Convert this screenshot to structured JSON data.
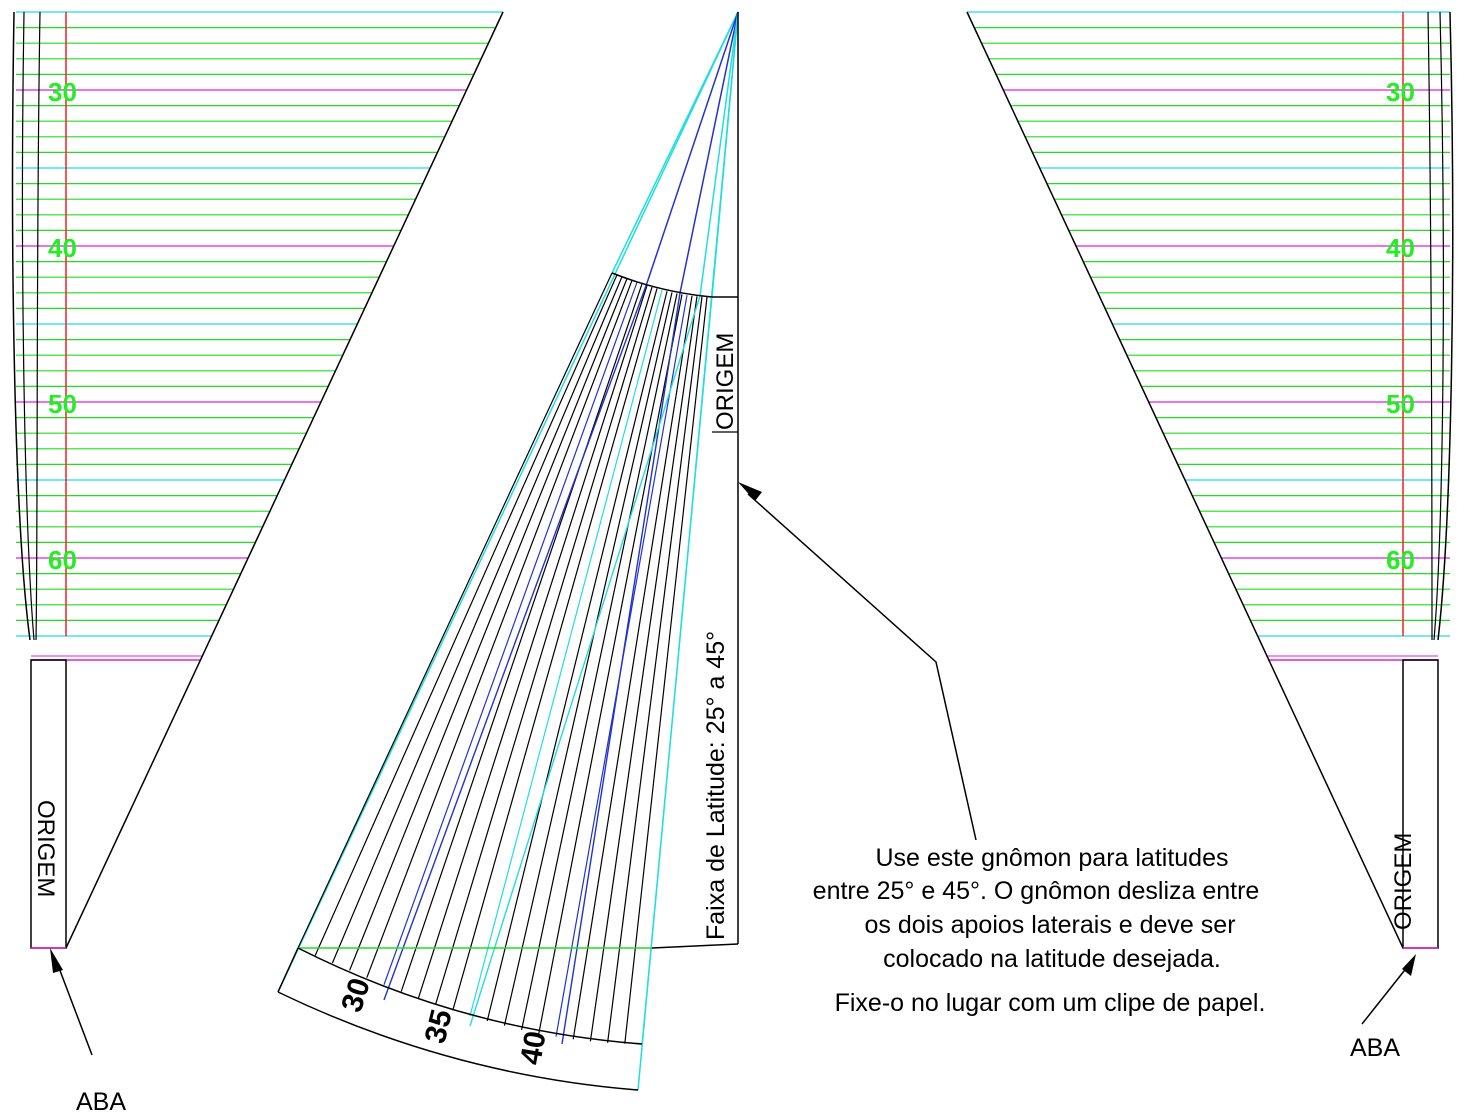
{
  "colors": {
    "green": "#22dd22",
    "magenta": "#dd22dd",
    "cyan": "#22dddd",
    "red": "#ee2222",
    "blue": "#2233cc",
    "black": "#000000",
    "number_green": "#22ee22"
  },
  "left_support": {
    "scale_labels": [
      "30",
      "40",
      "50",
      "60"
    ],
    "origin_label": "ORIGEM",
    "tab_label": "ABA"
  },
  "right_support": {
    "scale_labels": [
      "30",
      "40",
      "50",
      "60"
    ],
    "origin_label": "ORIGEM",
    "tab_label": "ABA"
  },
  "gnomon": {
    "origin_label": "ORIGEM",
    "band_label": "Faixa de Latitude: 25° a 45°",
    "degree_labels": [
      "30",
      "35",
      "40"
    ]
  },
  "note": {
    "lines": [
      "Use este gnômon para latitudes",
      "entre 25° e 45°. O gnômon desliza entre",
      "os dois apoios laterais e deve ser",
      "colocado na latitude desejada.",
      "Fixe-o no lugar com um clipe de papel."
    ]
  }
}
